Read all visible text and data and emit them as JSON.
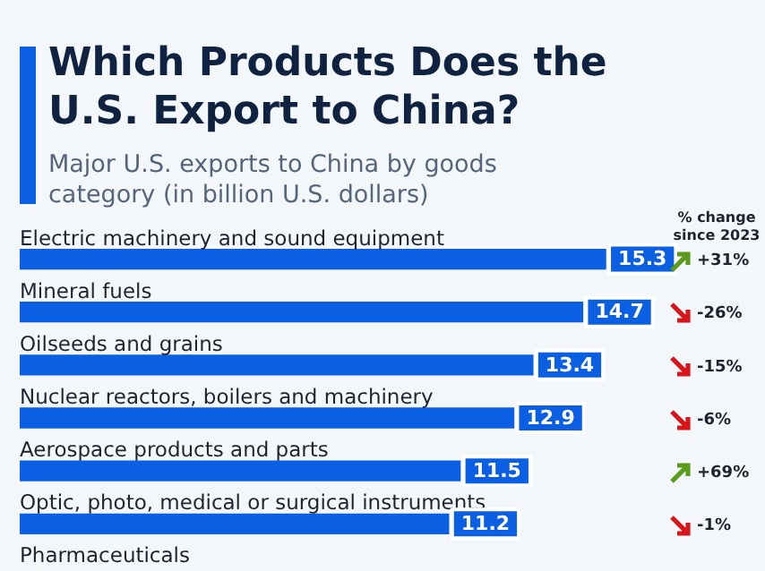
{
  "chart_data": {
    "type": "bar",
    "orientation": "horizontal",
    "title": "Which Products Does the U.S. Export to China?",
    "subtitle": "Major U.S. exports to China by goods category (in billion U.S. dollars)",
    "categories": [
      "Electric machinery and sound equipment",
      "Mineral fuels",
      "Oilseeds and grains",
      "Nuclear reactors, boilers and machinery",
      "Aerospace products and parts",
      "Optic, photo, medical or surgical instruments",
      "Pharmaceuticals"
    ],
    "values": [
      15.3,
      14.7,
      13.4,
      12.9,
      11.5,
      11.2,
      null
    ],
    "color": "#0b5fe3",
    "data_labels": true,
    "annotations": [
      "% change since 2023",
      "+31%",
      "-26%",
      "-15%",
      "-6%",
      "+69%",
      "-1%"
    ]
  }
}
